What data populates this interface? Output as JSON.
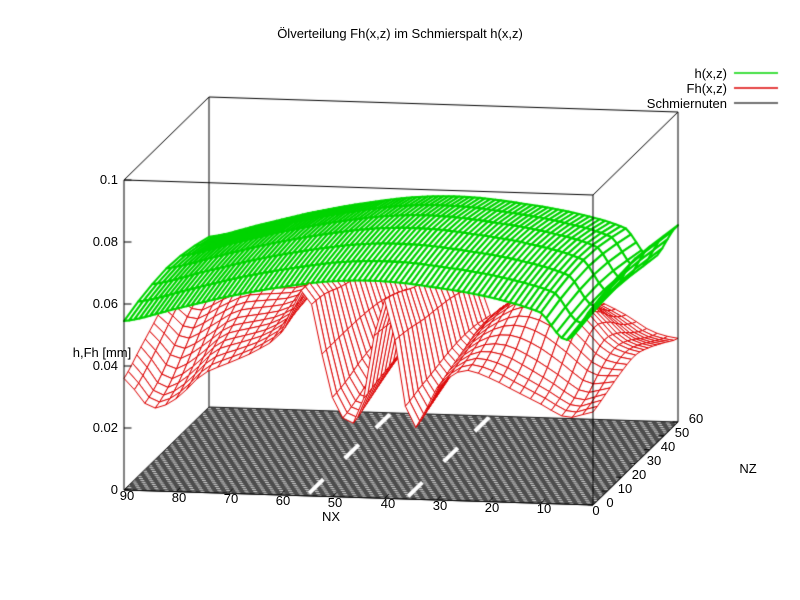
{
  "title": "Ölverteilung Fh(x,z) im Schmierspalt h(x,z)",
  "legend": {
    "items": [
      {
        "label": "h(x,z)",
        "color": "#00d400"
      },
      {
        "label": "Fh(x,z)",
        "color": "#dd0000"
      },
      {
        "label": "Schmiernuten",
        "color": "#404040"
      }
    ]
  },
  "axes": {
    "z": {
      "label": "h,Fh [mm]",
      "ticks": [
        "0",
        "0.02",
        "0.04",
        "0.06",
        "0.08",
        "0.1"
      ],
      "range": [
        0,
        0.1
      ]
    },
    "nx": {
      "label": "NX",
      "ticks": [
        "90",
        "80",
        "70",
        "60",
        "50",
        "40",
        "30",
        "20",
        "10",
        "0"
      ],
      "range": [
        90,
        0
      ]
    },
    "nz": {
      "label": "NZ",
      "ticks": [
        "0",
        "10",
        "20",
        "30",
        "40",
        "50",
        "60"
      ],
      "range": [
        0,
        60
      ]
    }
  },
  "chart_data": {
    "type": "surface3d-mesh",
    "title": "Ölverteilung Fh(x,z) im Schmierspalt h(x,z)",
    "x_axis": {
      "label": "NX",
      "range": [
        0,
        90
      ],
      "tick_step": 10
    },
    "y_axis": {
      "label": "NZ",
      "range": [
        0,
        60
      ],
      "tick_step": 10
    },
    "z_axis": {
      "label": "h,Fh [mm]",
      "range": [
        0,
        0.1
      ],
      "tick_step": 0.02
    },
    "surfaces": [
      {
        "name": "h(x,z)",
        "color": "#00d400",
        "style": "dense-band-mesh",
        "nx": [
          0,
          5,
          10,
          20,
          30,
          40,
          50,
          60,
          70,
          80,
          90
        ],
        "nz": [
          0,
          10,
          20,
          30,
          40,
          50,
          60
        ],
        "values": [
          [
            0.0635,
            0.053,
            0.0615,
            0.066,
            0.0685,
            0.07,
            0.0695,
            0.067,
            0.0635,
            0.059,
            0.0545
          ],
          [
            0.0648,
            0.054,
            0.0633,
            0.0678,
            0.0703,
            0.0718,
            0.0713,
            0.0688,
            0.0653,
            0.0608,
            0.0563
          ],
          [
            0.0658,
            0.0548,
            0.0645,
            0.069,
            0.0715,
            0.073,
            0.0725,
            0.07,
            0.0665,
            0.062,
            0.0575
          ],
          [
            0.0662,
            0.055,
            0.0651,
            0.0696,
            0.0721,
            0.0736,
            0.0731,
            0.0706,
            0.0671,
            0.0626,
            0.0581
          ],
          [
            0.0655,
            0.0545,
            0.0647,
            0.0692,
            0.0717,
            0.0732,
            0.0727,
            0.0702,
            0.0667,
            0.0622,
            0.0577
          ],
          [
            0.0645,
            0.0535,
            0.0635,
            0.068,
            0.0705,
            0.072,
            0.0715,
            0.069,
            0.0655,
            0.061,
            0.0565
          ],
          [
            0.0635,
            0.0525,
            0.0619,
            0.0664,
            0.0689,
            0.0704,
            0.0699,
            0.0674,
            0.0639,
            0.0594,
            0.0549
          ]
        ]
      },
      {
        "name": "Fh(x,z)",
        "color": "#dd0000",
        "style": "open-mesh",
        "nx": [
          0,
          5,
          10,
          15,
          20,
          25,
          30,
          35,
          40,
          45,
          50,
          55,
          60,
          65,
          70,
          75,
          80,
          85,
          90
        ],
        "nz": [
          0,
          10,
          20,
          30,
          40,
          50,
          60
        ],
        "values": [
          [
            0.03,
            0.028,
            0.032,
            0.036,
            0.04,
            0.042,
            0.036,
            0.024,
            0.064,
            0.026,
            0.032,
            0.066,
            0.052,
            0.046,
            0.042,
            0.038,
            0.03,
            0.027,
            0.036
          ],
          [
            0.032,
            0.03,
            0.035,
            0.04,
            0.044,
            0.044,
            0.038,
            0.026,
            0.062,
            0.028,
            0.033,
            0.065,
            0.054,
            0.048,
            0.045,
            0.042,
            0.034,
            0.03,
            0.04
          ],
          [
            0.034,
            0.035,
            0.042,
            0.048,
            0.05,
            0.047,
            0.04,
            0.028,
            0.059,
            0.03,
            0.035,
            0.062,
            0.055,
            0.05,
            0.048,
            0.046,
            0.04,
            0.036,
            0.044
          ],
          [
            0.035,
            0.038,
            0.047,
            0.053,
            0.054,
            0.049,
            0.042,
            0.03,
            0.057,
            0.032,
            0.036,
            0.06,
            0.056,
            0.052,
            0.051,
            0.05,
            0.046,
            0.042,
            0.048
          ],
          [
            0.033,
            0.036,
            0.044,
            0.05,
            0.052,
            0.048,
            0.042,
            0.031,
            0.055,
            0.033,
            0.036,
            0.058,
            0.055,
            0.052,
            0.052,
            0.052,
            0.049,
            0.046,
            0.05
          ],
          [
            0.03,
            0.032,
            0.038,
            0.043,
            0.046,
            0.044,
            0.04,
            0.031,
            0.052,
            0.033,
            0.035,
            0.055,
            0.053,
            0.051,
            0.051,
            0.051,
            0.049,
            0.047,
            0.049
          ],
          [
            0.027,
            0.029,
            0.034,
            0.038,
            0.041,
            0.04,
            0.037,
            0.03,
            0.048,
            0.032,
            0.034,
            0.05,
            0.049,
            0.048,
            0.048,
            0.048,
            0.046,
            0.045,
            0.046
          ]
        ]
      }
    ],
    "base_plane": {
      "name": "Schmiernuten",
      "z": 0,
      "color": "#4c4c4c",
      "hatch_color": "#ffffff",
      "grooves": [
        {
          "nx": 55,
          "nz_segments": [
            [
              2,
              12
            ],
            [
              27,
              37
            ],
            [
              49,
              59
            ]
          ]
        },
        {
          "nx": 36,
          "nz_segments": [
            [
              2,
              12
            ],
            [
              27,
              37
            ],
            [
              49,
              59
            ]
          ]
        }
      ]
    }
  }
}
